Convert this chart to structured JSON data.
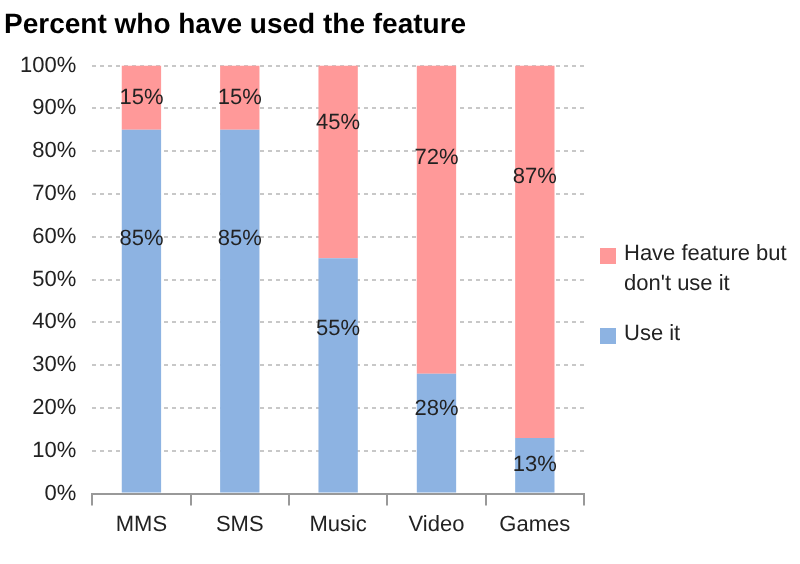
{
  "chart_data": {
    "type": "bar",
    "stacked": true,
    "title": "Percent who have used the feature",
    "categories": [
      "MMS",
      "SMS",
      "Music",
      "Video",
      "Games"
    ],
    "series": [
      {
        "name": "Use it",
        "color": "#8db3e2",
        "values": [
          85,
          85,
          55,
          28,
          13
        ],
        "value_labels": [
          "85%",
          "85%",
          "55%",
          "28%",
          "13%"
        ]
      },
      {
        "name": "Have feature but don't use it",
        "color": "#ff9999",
        "values": [
          15,
          15,
          45,
          72,
          87
        ],
        "value_labels": [
          "15%",
          "15%",
          "45%",
          "72%",
          "87%"
        ]
      }
    ],
    "ylim": [
      0,
      100
    ],
    "yticks": [
      {
        "value": 0,
        "label": "0%"
      },
      {
        "value": 10,
        "label": "10%"
      },
      {
        "value": 20,
        "label": "20%"
      },
      {
        "value": 30,
        "label": "30%"
      },
      {
        "value": 40,
        "label": "40%"
      },
      {
        "value": 50,
        "label": "50%"
      },
      {
        "value": 60,
        "label": "60%"
      },
      {
        "value": 70,
        "label": "70%"
      },
      {
        "value": 80,
        "label": "80%"
      },
      {
        "value": 90,
        "label": "90%"
      },
      {
        "value": 100,
        "label": "100%"
      }
    ],
    "grid": "y",
    "legend": "right"
  }
}
